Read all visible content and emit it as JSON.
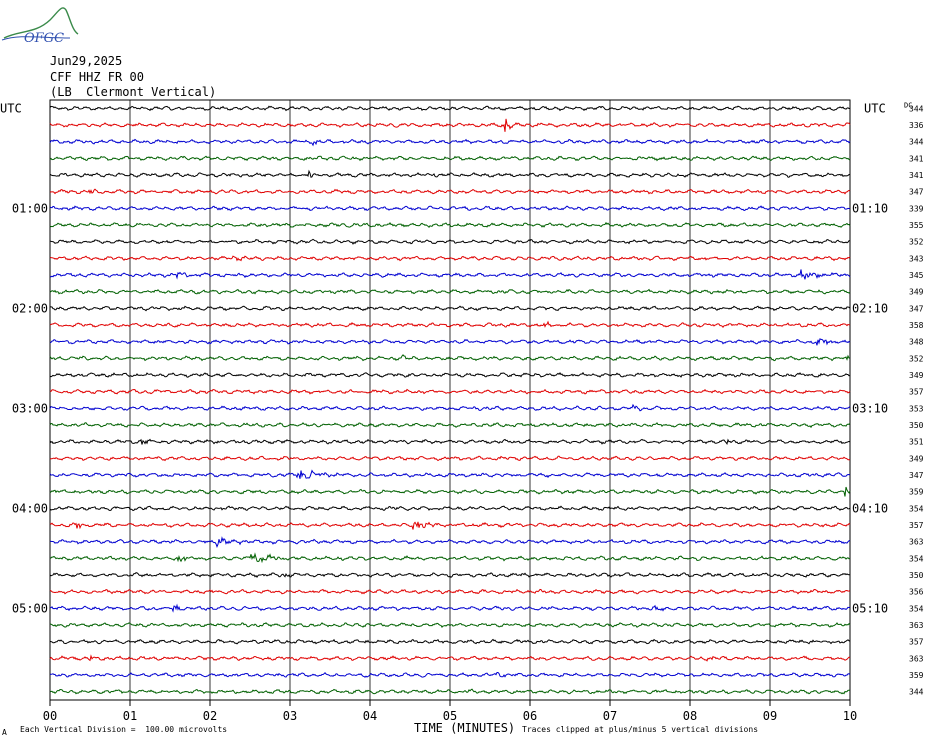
{
  "header": {
    "logo_text": "OFGC",
    "date": "Jun29,2025",
    "station": "CFF HHZ FR 00",
    "location": "(LB  Clermont Vertical)"
  },
  "labels": {
    "left_tz": "UTC",
    "right_tz": "UTC",
    "dc_header": "DC"
  },
  "footer": {
    "scale_note": "Each Vertical Division =  100.00 microvolts",
    "scale_marker": "A",
    "xlabel": "TIME (MINUTES)",
    "clip_note": "Traces clipped at plus/minus 5 vertical divisions"
  },
  "colors": {
    "cycle": [
      "#000000",
      "#e00000",
      "#0000d0",
      "#006000"
    ],
    "grid": "#000000"
  },
  "chart_data": {
    "type": "line",
    "title": "Jun29,2025",
    "xlabel": "TIME (MINUTES)",
    "xlim": [
      0,
      10
    ],
    "x_ticks": [
      "00",
      "01",
      "02",
      "03",
      "04",
      "05",
      "06",
      "07",
      "08",
      "09",
      "10"
    ],
    "trace_count": 36,
    "left_time_labels": [
      {
        "row": 6,
        "text": "01:00"
      },
      {
        "row": 12,
        "text": "02:00"
      },
      {
        "row": 18,
        "text": "03:00"
      },
      {
        "row": 24,
        "text": "04:00"
      },
      {
        "row": 30,
        "text": "05:00"
      }
    ],
    "right_time_labels": [
      {
        "row": 6,
        "text": "01:10"
      },
      {
        "row": 12,
        "text": "02:10"
      },
      {
        "row": 18,
        "text": "03:10"
      },
      {
        "row": 24,
        "text": "04:10"
      },
      {
        "row": 30,
        "text": "05:10"
      }
    ],
    "dc_offsets": [
      344,
      336,
      344,
      341,
      341,
      347,
      339,
      355,
      352,
      343,
      345,
      349,
      347,
      358,
      348,
      352,
      349,
      357,
      353,
      350,
      351,
      349,
      347,
      359,
      354,
      357,
      363,
      354,
      350,
      356,
      354,
      363,
      357,
      363,
      359,
      344
    ],
    "events": [
      {
        "row": 1,
        "minute": 5.7,
        "amp": 2.2,
        "dur": 0.12
      },
      {
        "row": 2,
        "minute": 3.3,
        "amp": 1.2,
        "dur": 0.1
      },
      {
        "row": 4,
        "minute": 3.25,
        "amp": 1.4,
        "dur": 0.08
      },
      {
        "row": 4,
        "minute": 4.8,
        "amp": 0.9,
        "dur": 0.1
      },
      {
        "row": 5,
        "minute": 0.5,
        "amp": 0.9,
        "dur": 0.15
      },
      {
        "row": 9,
        "minute": 2.3,
        "amp": 1.0,
        "dur": 0.15
      },
      {
        "row": 10,
        "minute": 1.6,
        "amp": 1.0,
        "dur": 0.15
      },
      {
        "row": 10,
        "minute": 9.4,
        "amp": 1.4,
        "dur": 0.5
      },
      {
        "row": 13,
        "minute": 6.2,
        "amp": 1.1,
        "dur": 0.12
      },
      {
        "row": 14,
        "minute": 9.6,
        "amp": 1.0,
        "dur": 0.3
      },
      {
        "row": 15,
        "minute": 4.4,
        "amp": 0.9,
        "dur": 0.15
      },
      {
        "row": 15,
        "minute": 9.95,
        "amp": 1.2,
        "dur": 0.05
      },
      {
        "row": 18,
        "minute": 7.3,
        "amp": 0.8,
        "dur": 0.15
      },
      {
        "row": 20,
        "minute": 1.15,
        "amp": 1.6,
        "dur": 0.12
      },
      {
        "row": 20,
        "minute": 8.45,
        "amp": 1.3,
        "dur": 0.1
      },
      {
        "row": 22,
        "minute": 3.1,
        "amp": 2.0,
        "dur": 0.5
      },
      {
        "row": 23,
        "minute": 9.95,
        "amp": 1.8,
        "dur": 0.06
      },
      {
        "row": 25,
        "minute": 0.35,
        "amp": 1.6,
        "dur": 0.12
      },
      {
        "row": 25,
        "minute": 4.55,
        "amp": 1.6,
        "dur": 0.3
      },
      {
        "row": 26,
        "minute": 2.1,
        "amp": 1.2,
        "dur": 0.5
      },
      {
        "row": 27,
        "minute": 1.6,
        "amp": 1.0,
        "dur": 0.2
      },
      {
        "row": 27,
        "minute": 2.5,
        "amp": 1.8,
        "dur": 0.45
      },
      {
        "row": 28,
        "minute": 2.9,
        "amp": 0.8,
        "dur": 0.1
      },
      {
        "row": 30,
        "minute": 1.55,
        "amp": 1.1,
        "dur": 0.2
      },
      {
        "row": 30,
        "minute": 7.55,
        "amp": 1.3,
        "dur": 0.2
      },
      {
        "row": 33,
        "minute": 0.5,
        "amp": 0.9,
        "dur": 0.1
      },
      {
        "row": 33,
        "minute": 8.2,
        "amp": 0.9,
        "dur": 0.15
      },
      {
        "row": 34,
        "minute": 5.6,
        "amp": 1.0,
        "dur": 0.15
      },
      {
        "row": 35,
        "minute": 5.2,
        "amp": 0.8,
        "dur": 0.1
      }
    ]
  }
}
